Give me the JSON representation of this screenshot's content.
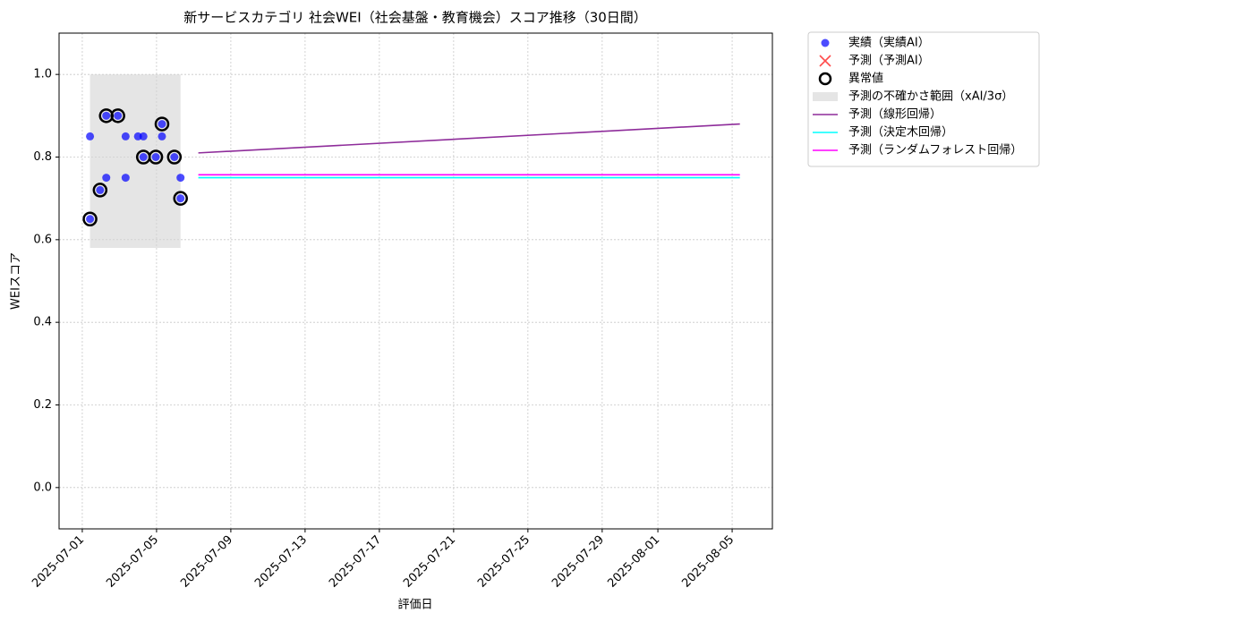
{
  "chart_data": {
    "type": "scatter",
    "title": "新サービスカテゴリ 社会WEI（社会基盤・教育機会）スコア推移（30日間）",
    "xlabel": "評価日",
    "ylabel": "WEIスコア",
    "xlim": [
      "2025-06-29T18:00",
      "2025-08-07T04:00"
    ],
    "ylim": [
      -0.1,
      1.1
    ],
    "xticks": [
      "2025-07-01",
      "2025-07-05",
      "2025-07-09",
      "2025-07-13",
      "2025-07-17",
      "2025-07-21",
      "2025-07-25",
      "2025-07-29",
      "2025-08-01",
      "2025-08-05"
    ],
    "yticks": [
      {
        "value": 0,
        "label": "0.0"
      },
      {
        "value": 0.2,
        "label": "0.2"
      },
      {
        "value": 0.4,
        "label": "0.4"
      },
      {
        "value": 0.6,
        "label": "0.6"
      },
      {
        "value": 0.8,
        "label": "0.8"
      },
      {
        "value": 1,
        "label": "1.0"
      }
    ],
    "grid": true,
    "legend": "outside-right",
    "series": [
      {
        "name": "実績（実績AI）",
        "kind": "dot",
        "color": "#0000ff",
        "x": [
          "2025-07-01T10:00",
          "2025-07-01T10:00",
          "2025-07-01T23:00",
          "2025-07-02T07:00",
          "2025-07-02T07:00",
          "2025-07-02T22:00",
          "2025-07-03T08:00",
          "2025-07-03T08:00",
          "2025-07-04T00:00",
          "2025-07-04T07:00",
          "2025-07-04T07:00",
          "2025-07-04T23:00",
          "2025-07-05T07:00",
          "2025-07-05T07:00",
          "2025-07-05T23:00",
          "2025-07-06T07:00",
          "2025-07-06T07:00"
        ],
        "values": [
          0.85,
          0.65,
          0.72,
          0.9,
          0.75,
          0.9,
          0.85,
          0.75,
          0.85,
          0.85,
          0.8,
          0.8,
          0.88,
          0.85,
          0.8,
          0.75,
          0.7
        ]
      },
      {
        "name": "予測（予測AI）",
        "kind": "cross",
        "color": "#ff0000",
        "x": [],
        "values": []
      },
      {
        "name": "異常値",
        "kind": "ring",
        "color": "#000000",
        "x": [
          "2025-07-01T10:00",
          "2025-07-01T23:00",
          "2025-07-02T07:00",
          "2025-07-02T22:00",
          "2025-07-04T07:00",
          "2025-07-04T23:00",
          "2025-07-05T07:00",
          "2025-07-05T23:00",
          "2025-07-06T07:00"
        ],
        "values": [
          0.65,
          0.72,
          0.9,
          0.9,
          0.8,
          0.8,
          0.88,
          0.8,
          0.7
        ]
      },
      {
        "name": "予測の不確かさ範囲（xAI/3σ）",
        "kind": "band",
        "color": "#d3d3d3",
        "x": [
          "2025-07-01T10:00",
          "2025-07-06T07:00"
        ],
        "values": [
          0.58,
          1.0
        ]
      },
      {
        "name": "予測（線形回帰）",
        "kind": "line",
        "color": "#8e2c9a",
        "x": [
          "2025-07-07T06:00",
          "2025-08-05T10:00"
        ],
        "values": [
          0.81,
          0.88
        ]
      },
      {
        "name": "予測（決定木回帰）",
        "kind": "line",
        "color": "#00ffff",
        "x": [
          "2025-07-07T06:00",
          "2025-08-05T10:00"
        ],
        "values": [
          0.75,
          0.75
        ]
      },
      {
        "name": "予測（ランダムフォレスト回帰）",
        "kind": "line",
        "color": "#ff00ff",
        "x": [
          "2025-07-07T06:00",
          "2025-08-05T10:00"
        ],
        "values": [
          0.757,
          0.757
        ]
      }
    ]
  }
}
